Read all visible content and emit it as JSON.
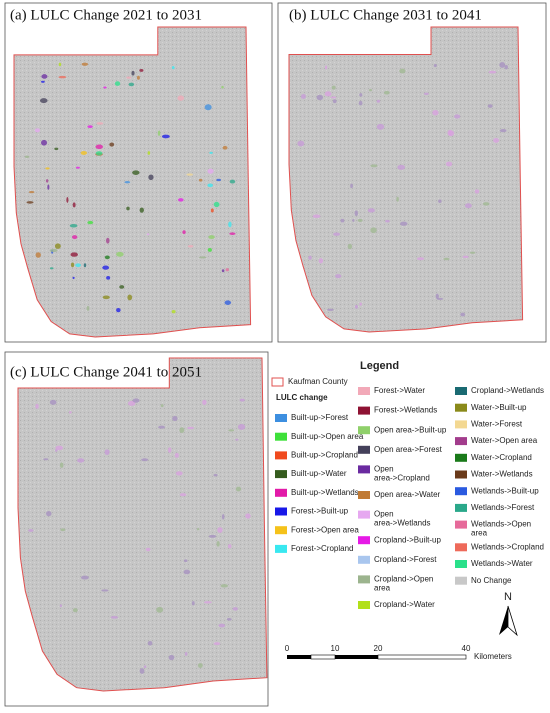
{
  "panels": [
    {
      "title": "(a) LULC Change 2021 to 2031"
    },
    {
      "title": "(b) LULC Change 2031 to 2041"
    },
    {
      "title": "(c) LULC Change 2041 to 2051"
    }
  ],
  "legend": {
    "title": "Legend",
    "boundary": {
      "label": "Kaufman County",
      "color": "#e0504f"
    },
    "group_title": "LULC change",
    "columns": [
      [
        {
          "label": "Built-up->Forest",
          "color": "#3d8fe0"
        },
        {
          "label": "Built-up->Open area",
          "color": "#3ee03a"
        },
        {
          "label": "Built-up->Cropland",
          "color": "#f04a1e"
        },
        {
          "label": "Built-up->Water",
          "color": "#355c1e"
        },
        {
          "label": "Built-up->Wetlands",
          "color": "#e21aa8"
        },
        {
          "label": "Forest->Built-up",
          "color": "#1818e8"
        },
        {
          "label": "Forest->Open area",
          "color": "#f5c21a"
        },
        {
          "label": "Forest->Cropland",
          "color": "#39e8f0"
        }
      ],
      [
        {
          "label": "Forest->Water",
          "color": "#f2a9b8"
        },
        {
          "label": "Forest->Wetlands",
          "color": "#8e1233"
        },
        {
          "label": "Open area->Built-up",
          "color": "#8fd06a"
        },
        {
          "label": "Open area->Forest",
          "color": "#44405a"
        },
        {
          "label": "Open area->Cropland",
          "color": "#6a2aa0"
        },
        {
          "label": "Open area->Water",
          "color": "#c07a34"
        },
        {
          "label": "Open area->Wetlands",
          "color": "#e6a8f0"
        },
        {
          "label": "Cropland->Built-up",
          "color": "#e61ae6"
        },
        {
          "label": "Cropland->Forest",
          "color": "#a9c6ee"
        },
        {
          "label": "Cropland->Open area",
          "color": "#9cb48e"
        },
        {
          "label": "Cropland->Water",
          "color": "#b2e01a"
        }
      ],
      [
        {
          "label": "Cropland->Wetlands",
          "color": "#1a6a72"
        },
        {
          "label": "Water->Built-up",
          "color": "#8a8a1a"
        },
        {
          "label": "Water->Forest",
          "color": "#f3d892"
        },
        {
          "label": "Water->Open area",
          "color": "#a23c8c"
        },
        {
          "label": "Water->Cropland",
          "color": "#1a7a1a"
        },
        {
          "label": "Water->Wetlands",
          "color": "#6a3a1a"
        },
        {
          "label": "Wetlands->Built-up",
          "color": "#2a5ae0"
        },
        {
          "label": "Wetlands->Forest",
          "color": "#2aa88a"
        },
        {
          "label": "Wetlands->Open area",
          "color": "#e66a9a"
        },
        {
          "label": "Wetlands->Cropland",
          "color": "#ee6a5a"
        },
        {
          "label": "Wetlands->Water",
          "color": "#2ae08a"
        },
        {
          "label": "No Change",
          "color": "#c8c8c8"
        }
      ]
    ]
  },
  "scale_bar": {
    "ticks": [
      "0",
      "10",
      "20",
      "40"
    ],
    "unit": "Kilometers"
  },
  "north_arrow": {
    "label": "N"
  }
}
